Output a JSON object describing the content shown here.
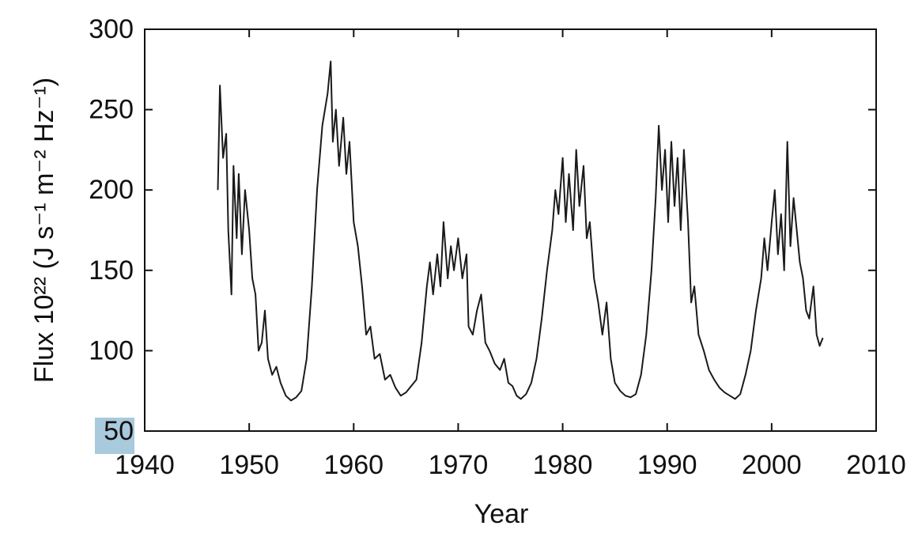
{
  "chart_data": {
    "type": "line",
    "xlabel": "Year",
    "ylabel": "Flux 10²² (J s⁻¹ m⁻² Hz⁻¹)",
    "color": "#1a1a1a",
    "xlim": [
      1940,
      2010
    ],
    "xticks": [
      1940,
      1950,
      1960,
      1970,
      1980,
      1990,
      2000,
      2010
    ],
    "ylim": [
      50,
      300
    ],
    "yticks": [
      50,
      100,
      150,
      200,
      250,
      300
    ],
    "grid": false,
    "x": [
      1947.0,
      1947.2,
      1947.5,
      1947.8,
      1948.0,
      1948.3,
      1948.5,
      1948.8,
      1949.0,
      1949.3,
      1949.6,
      1950.0,
      1950.3,
      1950.6,
      1950.9,
      1951.2,
      1951.5,
      1951.8,
      1952.2,
      1952.6,
      1953.0,
      1953.5,
      1954.0,
      1954.5,
      1955.0,
      1955.5,
      1956.0,
      1956.5,
      1957.0,
      1957.5,
      1957.8,
      1958.0,
      1958.3,
      1958.6,
      1959.0,
      1959.3,
      1959.6,
      1960.0,
      1960.4,
      1960.8,
      1961.2,
      1961.6,
      1962.0,
      1962.5,
      1963.0,
      1963.5,
      1964.0,
      1964.5,
      1965.0,
      1965.5,
      1966.0,
      1966.5,
      1967.0,
      1967.3,
      1967.6,
      1968.0,
      1968.3,
      1968.6,
      1969.0,
      1969.3,
      1969.6,
      1970.0,
      1970.4,
      1970.8,
      1971.0,
      1971.4,
      1971.8,
      1972.2,
      1972.6,
      1973.0,
      1973.5,
      1974.0,
      1974.4,
      1974.8,
      1975.2,
      1975.6,
      1976.0,
      1976.5,
      1977.0,
      1977.5,
      1978.0,
      1978.5,
      1979.0,
      1979.3,
      1979.6,
      1980.0,
      1980.3,
      1980.6,
      1981.0,
      1981.3,
      1981.6,
      1982.0,
      1982.3,
      1982.6,
      1983.0,
      1983.4,
      1983.8,
      1984.2,
      1984.6,
      1985.0,
      1985.5,
      1986.0,
      1986.5,
      1987.0,
      1987.5,
      1988.0,
      1988.5,
      1988.9,
      1989.2,
      1989.5,
      1989.8,
      1990.1,
      1990.4,
      1990.7,
      1991.0,
      1991.3,
      1991.6,
      1992.0,
      1992.3,
      1992.6,
      1993.0,
      1993.5,
      1994.0,
      1994.5,
      1995.0,
      1995.5,
      1996.0,
      1996.5,
      1997.0,
      1997.5,
      1998.0,
      1998.5,
      1999.0,
      1999.3,
      1999.6,
      2000.0,
      2000.3,
      2000.6,
      2000.9,
      2001.2,
      2001.5,
      2001.8,
      2002.1,
      2002.4,
      2002.7,
      2003.0,
      2003.3,
      2003.6,
      2004.0,
      2004.3,
      2004.6,
      2004.9
    ],
    "values": [
      200,
      265,
      220,
      235,
      175,
      135,
      215,
      170,
      210,
      160,
      200,
      175,
      145,
      135,
      100,
      105,
      125,
      95,
      85,
      90,
      80,
      72,
      69,
      71,
      75,
      95,
      140,
      200,
      240,
      260,
      280,
      230,
      250,
      215,
      245,
      210,
      230,
      180,
      165,
      140,
      110,
      115,
      95,
      98,
      82,
      85,
      77,
      72,
      74,
      78,
      82,
      105,
      140,
      155,
      135,
      160,
      140,
      180,
      145,
      165,
      150,
      170,
      145,
      160,
      115,
      110,
      125,
      135,
      105,
      100,
      92,
      88,
      95,
      80,
      78,
      72,
      70,
      73,
      80,
      95,
      120,
      150,
      175,
      200,
      185,
      220,
      180,
      210,
      175,
      225,
      190,
      215,
      170,
      180,
      145,
      130,
      110,
      130,
      95,
      80,
      75,
      72,
      71,
      73,
      85,
      110,
      150,
      195,
      240,
      200,
      225,
      180,
      230,
      190,
      220,
      175,
      225,
      180,
      130,
      140,
      110,
      100,
      88,
      82,
      77,
      74,
      72,
      70,
      73,
      85,
      100,
      125,
      145,
      170,
      150,
      180,
      200,
      160,
      185,
      150,
      230,
      165,
      195,
      175,
      155,
      145,
      125,
      120,
      140,
      110,
      103,
      108
    ]
  }
}
